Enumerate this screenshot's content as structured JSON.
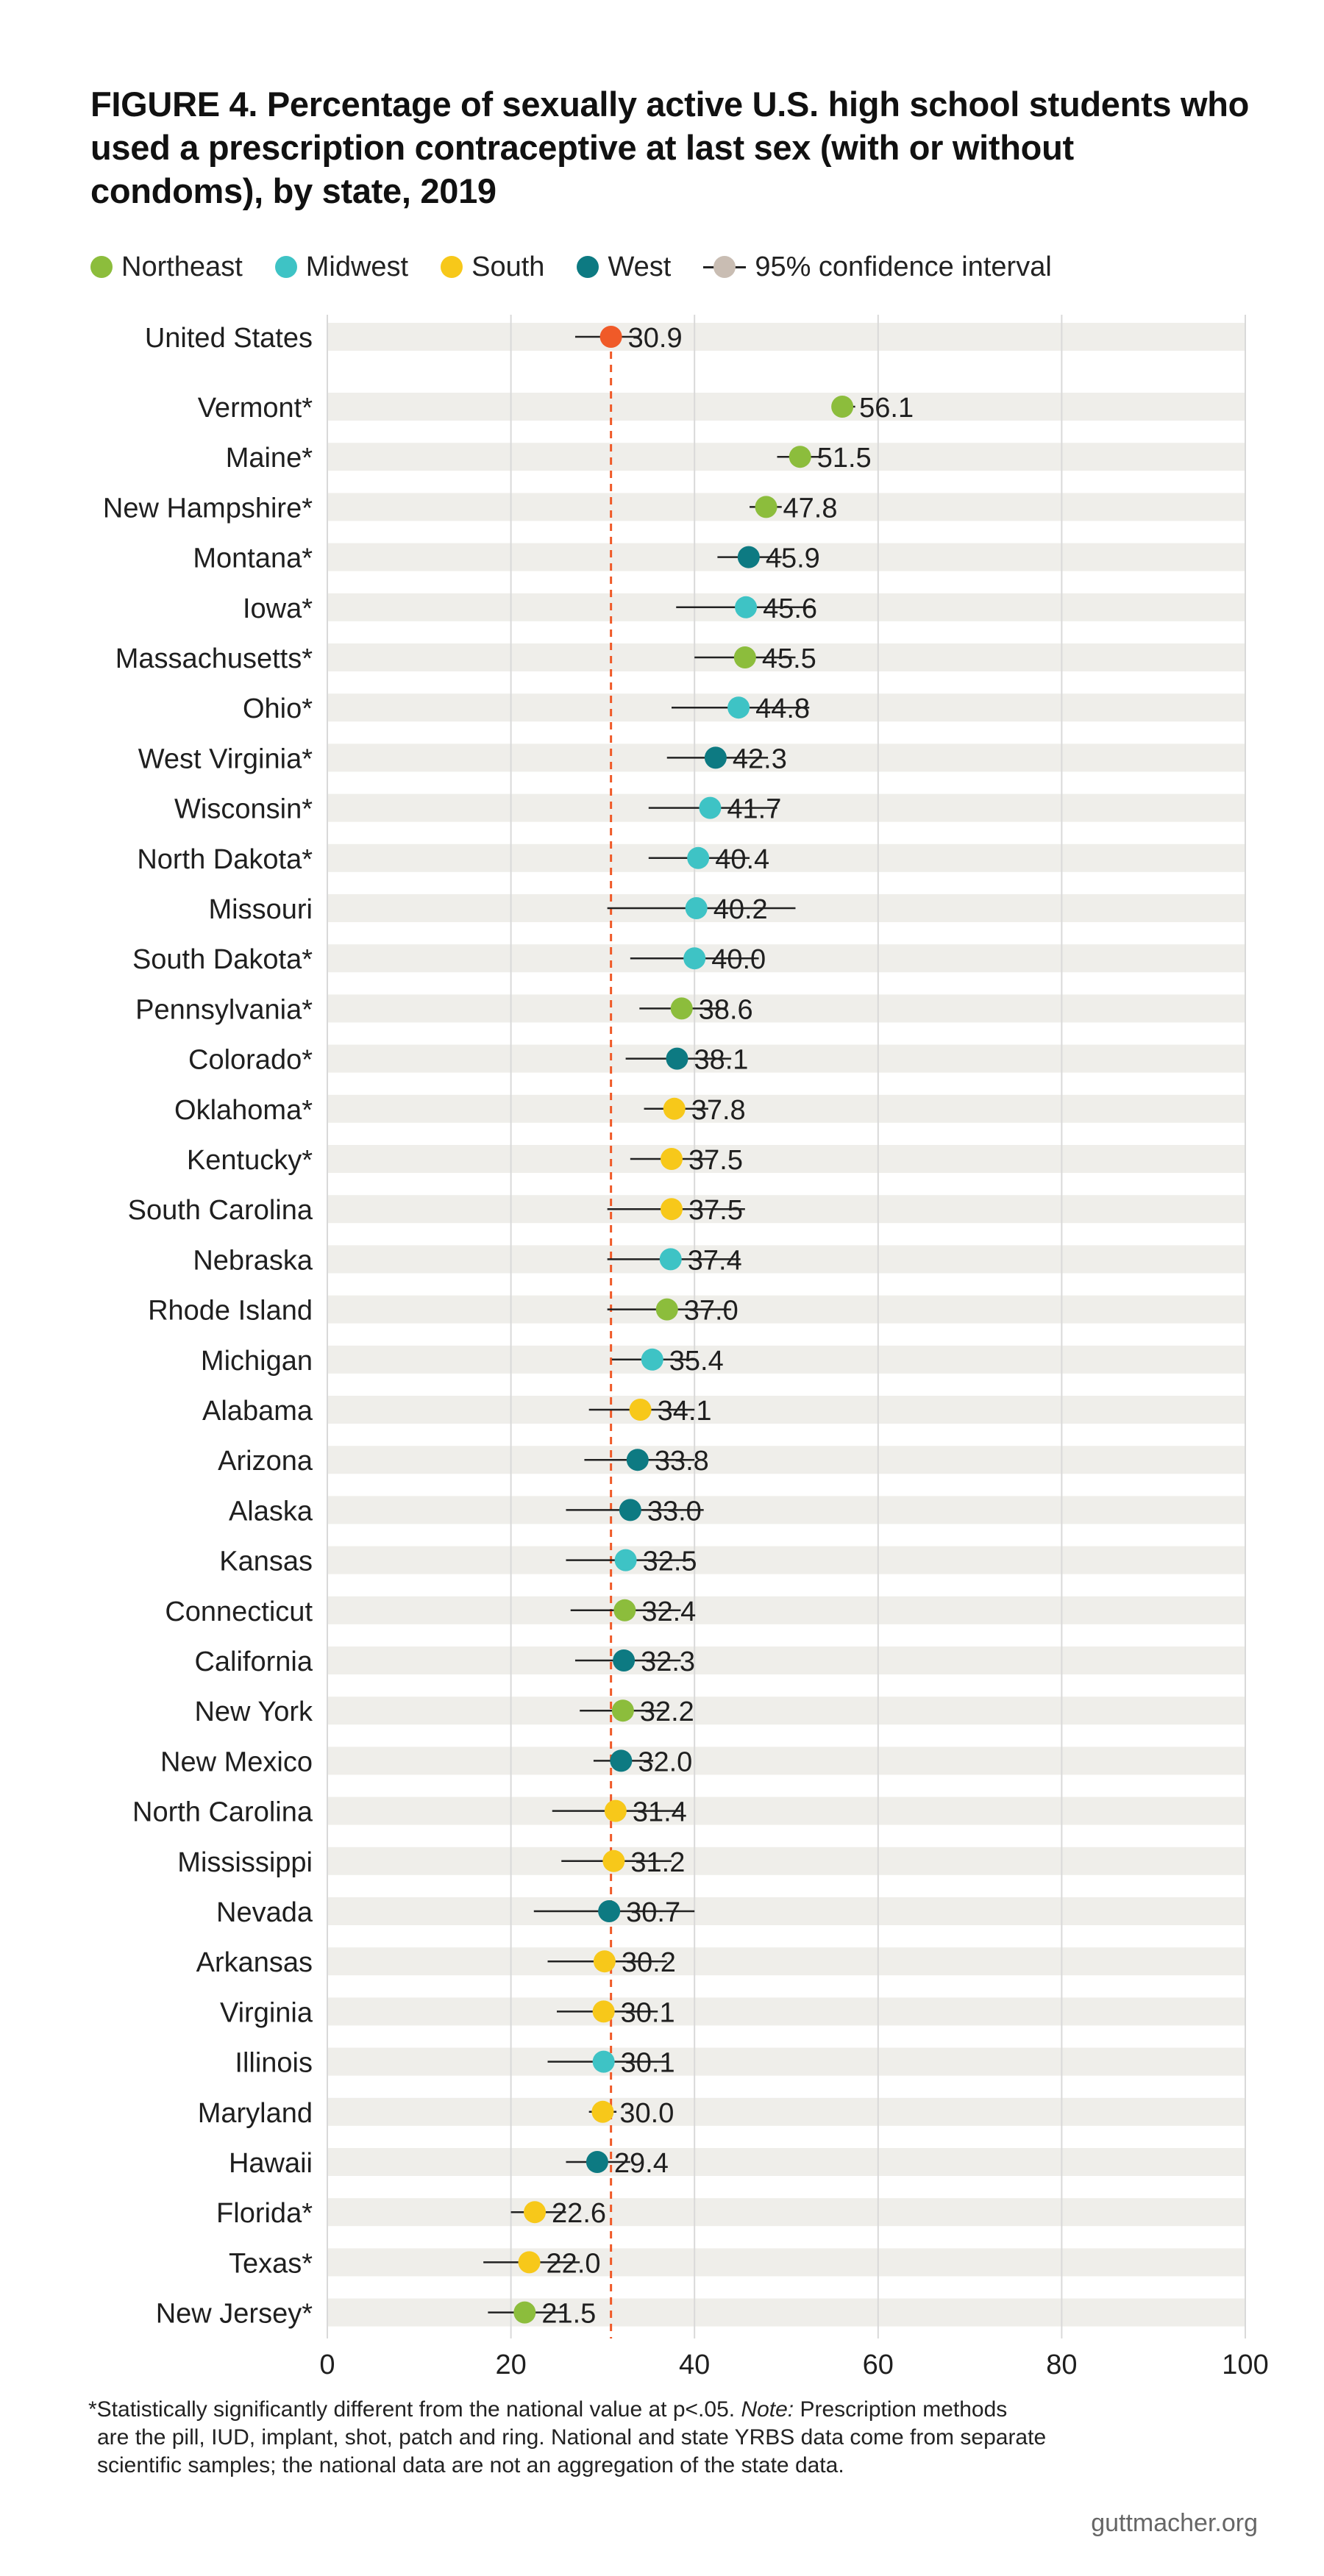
{
  "title": "FIGURE 4. Percentage of sexually active U.S. high school students who used a prescription contraceptive at last sex (with or without condoms), by state, 2019",
  "legend": {
    "items": [
      {
        "label": "Northeast",
        "color": "#8cbd3c"
      },
      {
        "label": "Midwest",
        "color": "#3ec3c5"
      },
      {
        "label": "South",
        "color": "#f7c81a"
      },
      {
        "label": "West",
        "color": "#0d7a82"
      }
    ],
    "ci_label": "95% confidence interval"
  },
  "colors": {
    "national": "#f05a28",
    "band": "#efeeea",
    "gridline": "#d9d9d9",
    "reference_line": "#f05a28",
    "ci_line": "#222222"
  },
  "chart_data": {
    "type": "scatter",
    "subtype": "dot plot with confidence intervals",
    "x_ticks": [
      "0",
      "20",
      "40",
      "60",
      "80",
      "100"
    ],
    "xlim": [
      0,
      100
    ],
    "reference_value": 30.9,
    "national": {
      "label": "United States",
      "value": 30.9,
      "value_label": "30.9",
      "ci": [
        27,
        34
      ],
      "region": "National"
    },
    "states": [
      {
        "label": "Vermont*",
        "value": 56.1,
        "value_label": "56.1",
        "region": "Northeast",
        "ci": [
          55,
          57.5
        ]
      },
      {
        "label": "Maine*",
        "value": 51.5,
        "value_label": "51.5",
        "region": "Northeast",
        "ci": [
          49,
          54
        ]
      },
      {
        "label": "New Hampshire*",
        "value": 47.8,
        "value_label": "47.8",
        "region": "Northeast",
        "ci": [
          46,
          49.5
        ]
      },
      {
        "label": "Montana*",
        "value": 45.9,
        "value_label": "45.9",
        "region": "West",
        "ci": [
          42.5,
          49.5
        ]
      },
      {
        "label": "Iowa*",
        "value": 45.6,
        "value_label": "45.6",
        "region": "Midwest",
        "ci": [
          38,
          53
        ]
      },
      {
        "label": "Massachusetts*",
        "value": 45.5,
        "value_label": "45.5",
        "region": "Northeast",
        "ci": [
          40,
          51
        ]
      },
      {
        "label": "Ohio*",
        "value": 44.8,
        "value_label": "44.8",
        "region": "Midwest",
        "ci": [
          37.5,
          52.5
        ]
      },
      {
        "label": "West Virginia*",
        "value": 42.3,
        "value_label": "42.3",
        "region": "West",
        "ci": [
          37,
          48
        ]
      },
      {
        "label": "Wisconsin*",
        "value": 41.7,
        "value_label": "41.7",
        "region": "Midwest",
        "ci": [
          35,
          49
        ]
      },
      {
        "label": "North Dakota*",
        "value": 40.4,
        "value_label": "40.4",
        "region": "Midwest",
        "ci": [
          35,
          46
        ]
      },
      {
        "label": "Missouri",
        "value": 40.2,
        "value_label": "40.2",
        "region": "Midwest",
        "ci": [
          30.5,
          51
        ]
      },
      {
        "label": "South Dakota*",
        "value": 40.0,
        "value_label": "40.0",
        "region": "Midwest",
        "ci": [
          33,
          47
        ]
      },
      {
        "label": "Pennsylvania*",
        "value": 38.6,
        "value_label": "38.6",
        "region": "Northeast",
        "ci": [
          34,
          43.5
        ]
      },
      {
        "label": "Colorado*",
        "value": 38.1,
        "value_label": "38.1",
        "region": "West",
        "ci": [
          32.5,
          44
        ]
      },
      {
        "label": "Oklahoma*",
        "value": 37.8,
        "value_label": "37.8",
        "region": "South",
        "ci": [
          34.5,
          41.5
        ]
      },
      {
        "label": "Kentucky*",
        "value": 37.5,
        "value_label": "37.5",
        "region": "South",
        "ci": [
          33,
          42
        ]
      },
      {
        "label": "South Carolina",
        "value": 37.5,
        "value_label": "37.5",
        "region": "South",
        "ci": [
          30.5,
          45.5
        ]
      },
      {
        "label": "Nebraska",
        "value": 37.4,
        "value_label": "37.4",
        "region": "Midwest",
        "ci": [
          30.5,
          45
        ]
      },
      {
        "label": "Rhode Island",
        "value": 37.0,
        "value_label": "37.0",
        "region": "Northeast",
        "ci": [
          30.5,
          44
        ]
      },
      {
        "label": "Michigan",
        "value": 35.4,
        "value_label": "35.4",
        "region": "Midwest",
        "ci": [
          31,
          40
        ]
      },
      {
        "label": "Alabama",
        "value": 34.1,
        "value_label": "34.1",
        "region": "South",
        "ci": [
          28.5,
          40
        ]
      },
      {
        "label": "Arizona",
        "value": 33.8,
        "value_label": "33.8",
        "region": "West",
        "ci": [
          28,
          40
        ]
      },
      {
        "label": "Alaska",
        "value": 33.0,
        "value_label": "33.0",
        "region": "West",
        "ci": [
          26,
          41
        ]
      },
      {
        "label": "Kansas",
        "value": 32.5,
        "value_label": "32.5",
        "region": "Midwest",
        "ci": [
          26,
          39.5
        ]
      },
      {
        "label": "Connecticut",
        "value": 32.4,
        "value_label": "32.4",
        "region": "Northeast",
        "ci": [
          26.5,
          38.5
        ]
      },
      {
        "label": "California",
        "value": 32.3,
        "value_label": "32.3",
        "region": "West",
        "ci": [
          27,
          38.5
        ]
      },
      {
        "label": "New York",
        "value": 32.2,
        "value_label": "32.2",
        "region": "Northeast",
        "ci": [
          27.5,
          37
        ]
      },
      {
        "label": "New Mexico",
        "value": 32.0,
        "value_label": "32.0",
        "region": "West",
        "ci": [
          29,
          35.5
        ]
      },
      {
        "label": "North Carolina",
        "value": 31.4,
        "value_label": "31.4",
        "region": "South",
        "ci": [
          24.5,
          38.5
        ]
      },
      {
        "label": "Mississippi",
        "value": 31.2,
        "value_label": "31.2",
        "region": "South",
        "ci": [
          25.5,
          37.5
        ]
      },
      {
        "label": "Nevada",
        "value": 30.7,
        "value_label": "30.7",
        "region": "West",
        "ci": [
          22.5,
          40
        ]
      },
      {
        "label": "Arkansas",
        "value": 30.2,
        "value_label": "30.2",
        "region": "South",
        "ci": [
          24,
          37
        ]
      },
      {
        "label": "Virginia",
        "value": 30.1,
        "value_label": "30.1",
        "region": "South",
        "ci": [
          25,
          36
        ]
      },
      {
        "label": "Illinois",
        "value": 30.1,
        "value_label": "30.1",
        "region": "Midwest",
        "ci": [
          24,
          37
        ]
      },
      {
        "label": "Maryland",
        "value": 30.0,
        "value_label": "30.0",
        "region": "South",
        "ci": [
          28.5,
          31.5
        ]
      },
      {
        "label": "Hawaii",
        "value": 29.4,
        "value_label": "29.4",
        "region": "West",
        "ci": [
          26,
          33
        ]
      },
      {
        "label": "Florida*",
        "value": 22.6,
        "value_label": "22.6",
        "region": "South",
        "ci": [
          20,
          26
        ]
      },
      {
        "label": "Texas*",
        "value": 22.0,
        "value_label": "22.0",
        "region": "South",
        "ci": [
          17,
          27.5
        ]
      },
      {
        "label": "New Jersey*",
        "value": 21.5,
        "value_label": "21.5",
        "region": "Northeast",
        "ci": [
          17.5,
          26
        ]
      }
    ]
  },
  "footnote": {
    "line1_a": "*Statistically significantly different from the national value at p<.05. ",
    "line1_note": "Note:",
    "line1_b": " Prescription methods",
    "line2": "are the pill, IUD, implant, shot, patch and ring. National and state YRBS data come from separate",
    "line3": "scientific samples; the national data are not an aggregation of the state data."
  },
  "source": "guttmacher.org"
}
